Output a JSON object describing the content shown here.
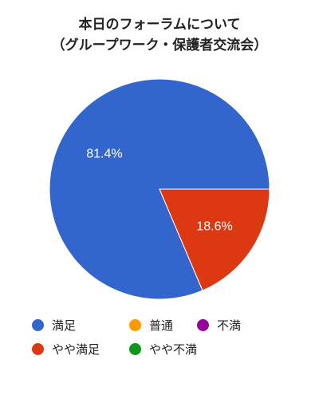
{
  "chart_data": {
    "type": "pie",
    "title": [
      "本日のフォーラムについて",
      "（グループワーク・保護者交流会）"
    ],
    "categories": [
      "満足",
      "やや満足",
      "普通",
      "やや不満",
      "不満"
    ],
    "values": [
      81.4,
      18.6,
      0,
      0,
      0
    ],
    "value_labels": [
      "81.4%",
      "18.6%",
      "",
      "",
      ""
    ],
    "colors": [
      "#3366cc",
      "#dc3912",
      "#ff9900",
      "#109618",
      "#990099"
    ],
    "legend_position": "bottom",
    "start_angle_deg": 0,
    "direction": "counter-clockwise"
  }
}
